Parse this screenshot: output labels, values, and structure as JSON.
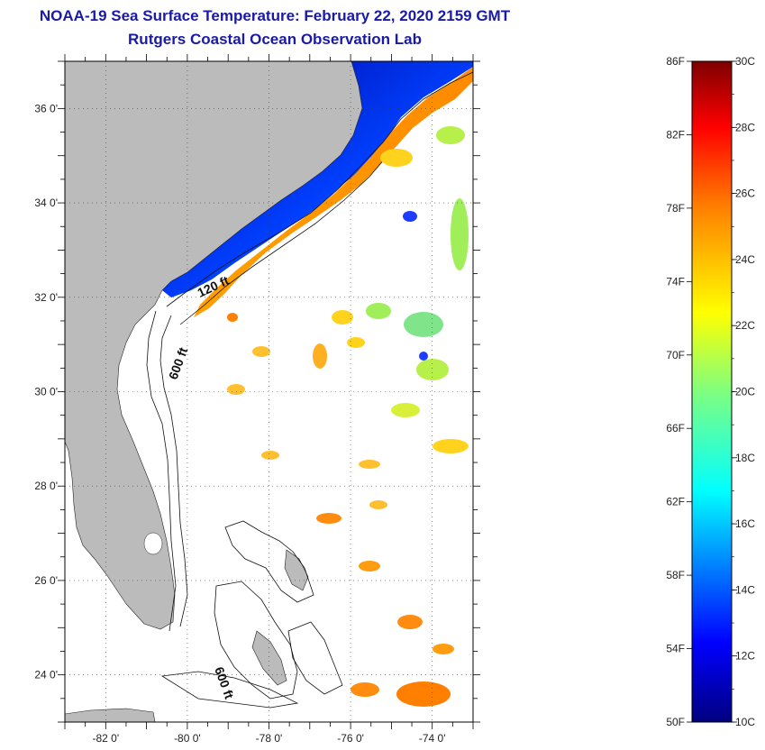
{
  "header": {
    "title": "NOAA-19 Sea Surface Temperature:  February 22, 2020 2159 GMT",
    "subtitle": "Rutgers Coastal Ocean Observation Lab"
  },
  "map": {
    "lon_range": [
      -83,
      -73
    ],
    "lat_range": [
      23,
      37
    ],
    "lat_ticks": [
      "24 0'",
      "26 0'",
      "28 0'",
      "30 0'",
      "32 0'",
      "34 0'",
      "36 0'"
    ],
    "lon_ticks": [
      "-82 0'",
      "-80 0'",
      "-78 0'",
      "-76 0'",
      "-74 0'"
    ],
    "grid": "dotted",
    "land_color": "#bbbbbb",
    "contour_labels": [
      "120 ft",
      "600 ft",
      "600 ft"
    ]
  },
  "colorbar": {
    "min_c": 10,
    "max_c": 30,
    "left_labels": [
      "86F",
      "82F",
      "78F",
      "74F",
      "70F",
      "66F",
      "62F",
      "58F",
      "54F",
      "50F"
    ],
    "right_labels": [
      "30C",
      "28C",
      "26C",
      "24C",
      "22C",
      "20C",
      "18C",
      "16C",
      "14C",
      "12C",
      "10C"
    ],
    "palette": [
      "#00007f",
      "#0000ff",
      "#007fff",
      "#00ffff",
      "#7fff7f",
      "#ffff00",
      "#ff7f00",
      "#ff0000",
      "#7f0000"
    ]
  }
}
